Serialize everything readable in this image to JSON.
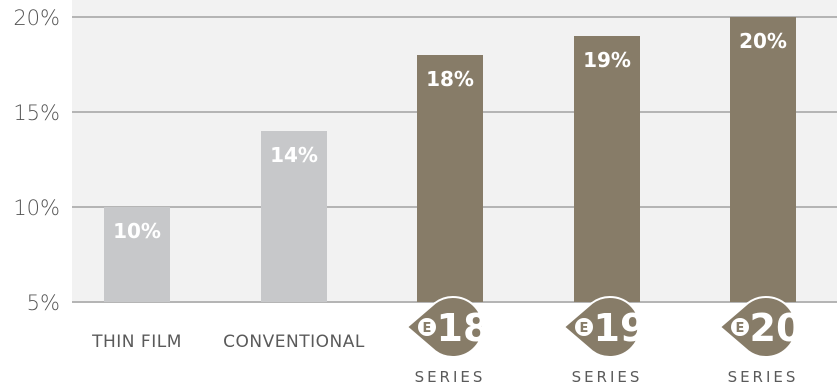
{
  "chart_data": {
    "type": "bar",
    "categories": [
      "THIN FILM",
      "CONVENTIONAL",
      "18",
      "19",
      "20"
    ],
    "values": [
      10,
      14,
      18,
      19,
      20
    ],
    "data_labels": [
      "10%",
      "14%",
      "18%",
      "19%",
      "20%"
    ],
    "y_ticks": [
      5,
      10,
      15,
      20
    ],
    "y_tick_labels": [
      "5%",
      "10%",
      "15%",
      "20%"
    ],
    "ylim": [
      5,
      20
    ],
    "grid": true,
    "series_word": "SERIES",
    "badge_letter": "E",
    "colors": {
      "standard": "#c7c8ca",
      "series": "#877c68",
      "grid": "#b5b5b5",
      "plot_bg": "#f2f2f2"
    },
    "highlight": [
      false,
      false,
      true,
      true,
      true
    ]
  }
}
